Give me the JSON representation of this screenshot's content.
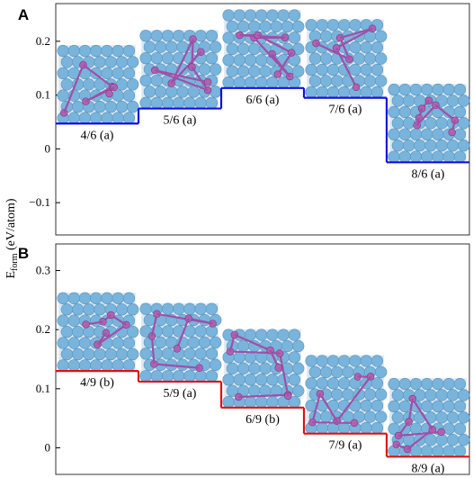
{
  "ylabel_main": "E",
  "ylabel_sub": "form",
  "ylabel_unit": " (eV/atom)",
  "colors": {
    "A": "#1010e0",
    "B": "#e01010",
    "atom_large": "#78b4dc",
    "atom_small": "#b062b0",
    "frame": "#000000"
  },
  "chart_data": [
    {
      "type": "step",
      "panel": "A",
      "ylim": [
        -0.16,
        0.27
      ],
      "yticks": [
        -0.1,
        0,
        0.1,
        0.2
      ],
      "ytick_labels": [
        "−0.1",
        "0",
        "0.1",
        "0.2"
      ],
      "grid": false,
      "categories": [
        "4/6 (a)",
        "5/6 (a)",
        "6/6 (a)",
        "7/6 (a)",
        "8/6 (a)"
      ],
      "values": [
        0.047,
        0.075,
        0.113,
        0.095,
        -0.025
      ]
    },
    {
      "type": "step",
      "panel": "B",
      "ylim": [
        -0.045,
        0.345
      ],
      "yticks": [
        0,
        0.1,
        0.2,
        0.3
      ],
      "ytick_labels": [
        "0",
        "0.1",
        "0.2",
        "0.3"
      ],
      "grid": false,
      "categories": [
        "4/9 (b)",
        "5/9 (a)",
        "6/9 (b)",
        "7/9 (a)",
        "8/9 (a)"
      ],
      "values": [
        0.13,
        0.112,
        0.068,
        0.024,
        -0.015
      ]
    }
  ]
}
